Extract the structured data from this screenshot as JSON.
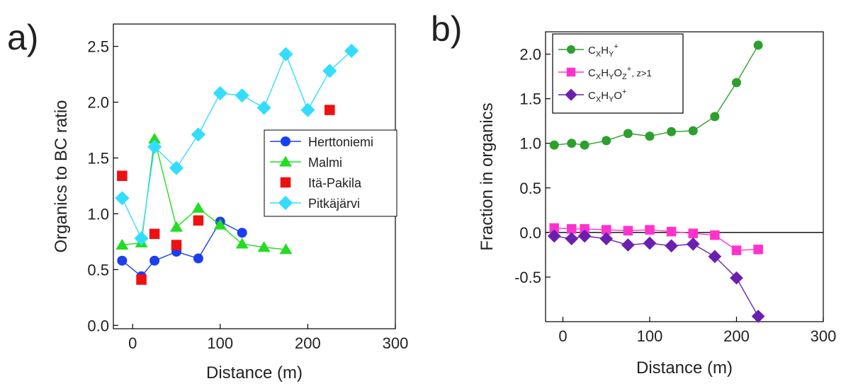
{
  "chart_data": [
    {
      "type": "line",
      "panel_label": "a)",
      "xlabel": "Distance (m)",
      "ylabel": "Organics to BC ratio",
      "xlim": [
        -22,
        300
      ],
      "ylim": [
        -0.03,
        2.7
      ],
      "xticks": [
        0,
        100,
        200,
        300
      ],
      "yticks": [
        0.0,
        0.5,
        1.0,
        1.5,
        2.0,
        2.5
      ],
      "ytick_labels": [
        "0.0",
        "0.5",
        "1.0",
        "1.5",
        "2.0",
        "2.5"
      ],
      "legend_position": "right-middle",
      "series": [
        {
          "name": "Herttoniemi",
          "color": "#1a3ff0",
          "marker": "circle",
          "line": true,
          "x": [
            -12,
            10,
            25,
            50,
            75,
            100,
            125
          ],
          "y": [
            0.58,
            0.44,
            0.58,
            0.66,
            0.6,
            0.93,
            0.83
          ]
        },
        {
          "name": "Malmi",
          "color": "#22dd22",
          "marker": "triangle",
          "line": true,
          "x": [
            -12,
            10,
            25,
            50,
            75,
            100,
            125,
            150,
            175
          ],
          "y": [
            0.72,
            0.74,
            1.67,
            0.88,
            1.05,
            0.9,
            0.73,
            0.7,
            0.68
          ]
        },
        {
          "name": "Itä-Pakila",
          "color": "#ee1111",
          "marker": "square",
          "line": false,
          "x": [
            -12,
            10,
            25,
            50,
            75,
            225
          ],
          "y": [
            1.34,
            0.41,
            0.82,
            0.72,
            0.94,
            1.93
          ]
        },
        {
          "name": "Pitkäjärvi",
          "color": "#33ddff",
          "marker": "diamond",
          "line": true,
          "x": [
            -12,
            10,
            25,
            50,
            75,
            100,
            125,
            150,
            175,
            200,
            225,
            250
          ],
          "y": [
            1.14,
            0.78,
            1.6,
            1.41,
            1.71,
            2.08,
            2.06,
            1.95,
            2.43,
            1.93,
            2.28,
            2.46
          ]
        }
      ]
    },
    {
      "type": "line",
      "panel_label": "b)",
      "xlabel": "Distance (m)",
      "ylabel": "Fraction in organics",
      "xlim": [
        -20,
        300
      ],
      "ylim": [
        -1.0,
        2.25
      ],
      "xticks": [
        0,
        100,
        200,
        300
      ],
      "yticks": [
        -0.5,
        0.0,
        0.5,
        1.0,
        1.5,
        2.0
      ],
      "ytick_labels": [
        "-0.5",
        "0.0",
        "0.5",
        "1.0",
        "1.5",
        "2.0"
      ],
      "zero_line": true,
      "legend_position": "top-left",
      "series": [
        {
          "name": "CXHY+",
          "color": "#2ca02c",
          "marker": "circle",
          "x": [
            -10,
            10,
            25,
            50,
            75,
            100,
            125,
            150,
            175,
            200,
            225
          ],
          "y": [
            0.98,
            1.0,
            0.98,
            1.03,
            1.11,
            1.08,
            1.13,
            1.14,
            1.3,
            1.68,
            2.1
          ]
        },
        {
          "name": "CXHYOZ+, z>1",
          "color": "#ff33cc",
          "marker": "square",
          "x": [
            -10,
            10,
            25,
            50,
            75,
            100,
            125,
            150,
            175,
            200,
            225
          ],
          "y": [
            0.05,
            0.04,
            0.04,
            0.03,
            0.02,
            0.03,
            0.01,
            -0.01,
            -0.03,
            -0.2,
            -0.19
          ]
        },
        {
          "name": "CXHYO+",
          "color": "#6b1fb0",
          "marker": "diamond",
          "x": [
            -10,
            10,
            25,
            50,
            75,
            100,
            125,
            150,
            175,
            200,
            225
          ],
          "y": [
            -0.04,
            -0.07,
            -0.04,
            -0.07,
            -0.14,
            -0.12,
            -0.15,
            -0.13,
            -0.27,
            -0.51,
            -0.94
          ]
        }
      ]
    }
  ]
}
